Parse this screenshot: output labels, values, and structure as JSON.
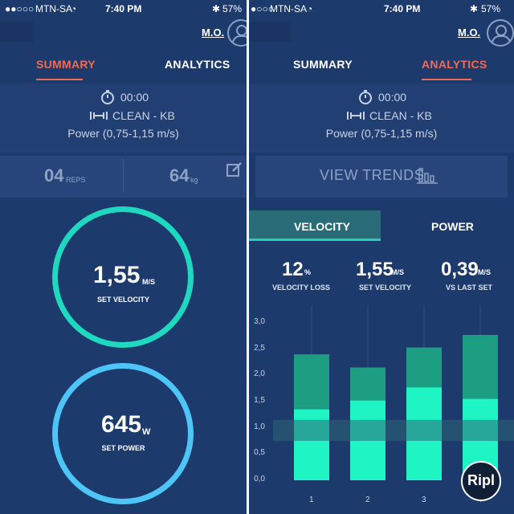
{
  "status_left": {
    "carrier": "MTN-SA",
    "time": "7:40 PM",
    "battery": "57%"
  },
  "status_right": {
    "carrier": "MTN-SA",
    "time": "7:40 PM",
    "battery": "57%"
  },
  "user": {
    "initials": "M.O."
  },
  "tabs": {
    "summary": "SUMMARY",
    "analytics": "ANALYTICS"
  },
  "workout": {
    "timer": "00:00",
    "exercise": "CLEAN - KB",
    "power_range": "Power (0,75-1,15 m/s)"
  },
  "summary": {
    "reps_value": "04",
    "reps_unit": "REPS",
    "weight_value": "64",
    "weight_unit": "kg",
    "velocity": {
      "value": "1,55",
      "unit": "M/S",
      "label": "SET VELOCITY",
      "color": "#1ed8bf"
    },
    "power": {
      "value": "645",
      "unit": "W",
      "label": "SET POWER",
      "color": "#4dc6f7"
    }
  },
  "analytics": {
    "view_trends": "VIEW TRENDS",
    "segments": {
      "velocity": "VELOCITY",
      "power": "POWER"
    },
    "metrics": [
      {
        "value": "12",
        "unit": "%",
        "label": "VELOCITY LOSS"
      },
      {
        "value": "1,55",
        "unit": "M/S",
        "label": "SET VELOCITY"
      },
      {
        "value": "0,39",
        "unit": "M/S",
        "label": "VS LAST SET"
      }
    ]
  },
  "chart_data": {
    "type": "bar",
    "categories": [
      "1",
      "2",
      "3",
      "4"
    ],
    "series": [
      {
        "values": [
          1.35,
          1.52,
          1.77,
          1.55
        ]
      },
      {
        "values": [
          2.4,
          2.15,
          2.53,
          2.77
        ]
      }
    ],
    "target_band": [
      0.75,
      1.15
    ],
    "ylim": [
      0,
      3.0
    ],
    "yticks": [
      "0,0",
      "0,5",
      "1,0",
      "1,5",
      "2,0",
      "2,5",
      "3,0"
    ],
    "colors": {
      "mean": "#1ff5c4",
      "peak": "#1d9e83",
      "band": "#2b6676"
    }
  },
  "ripl": {
    "label": "Ripl"
  }
}
